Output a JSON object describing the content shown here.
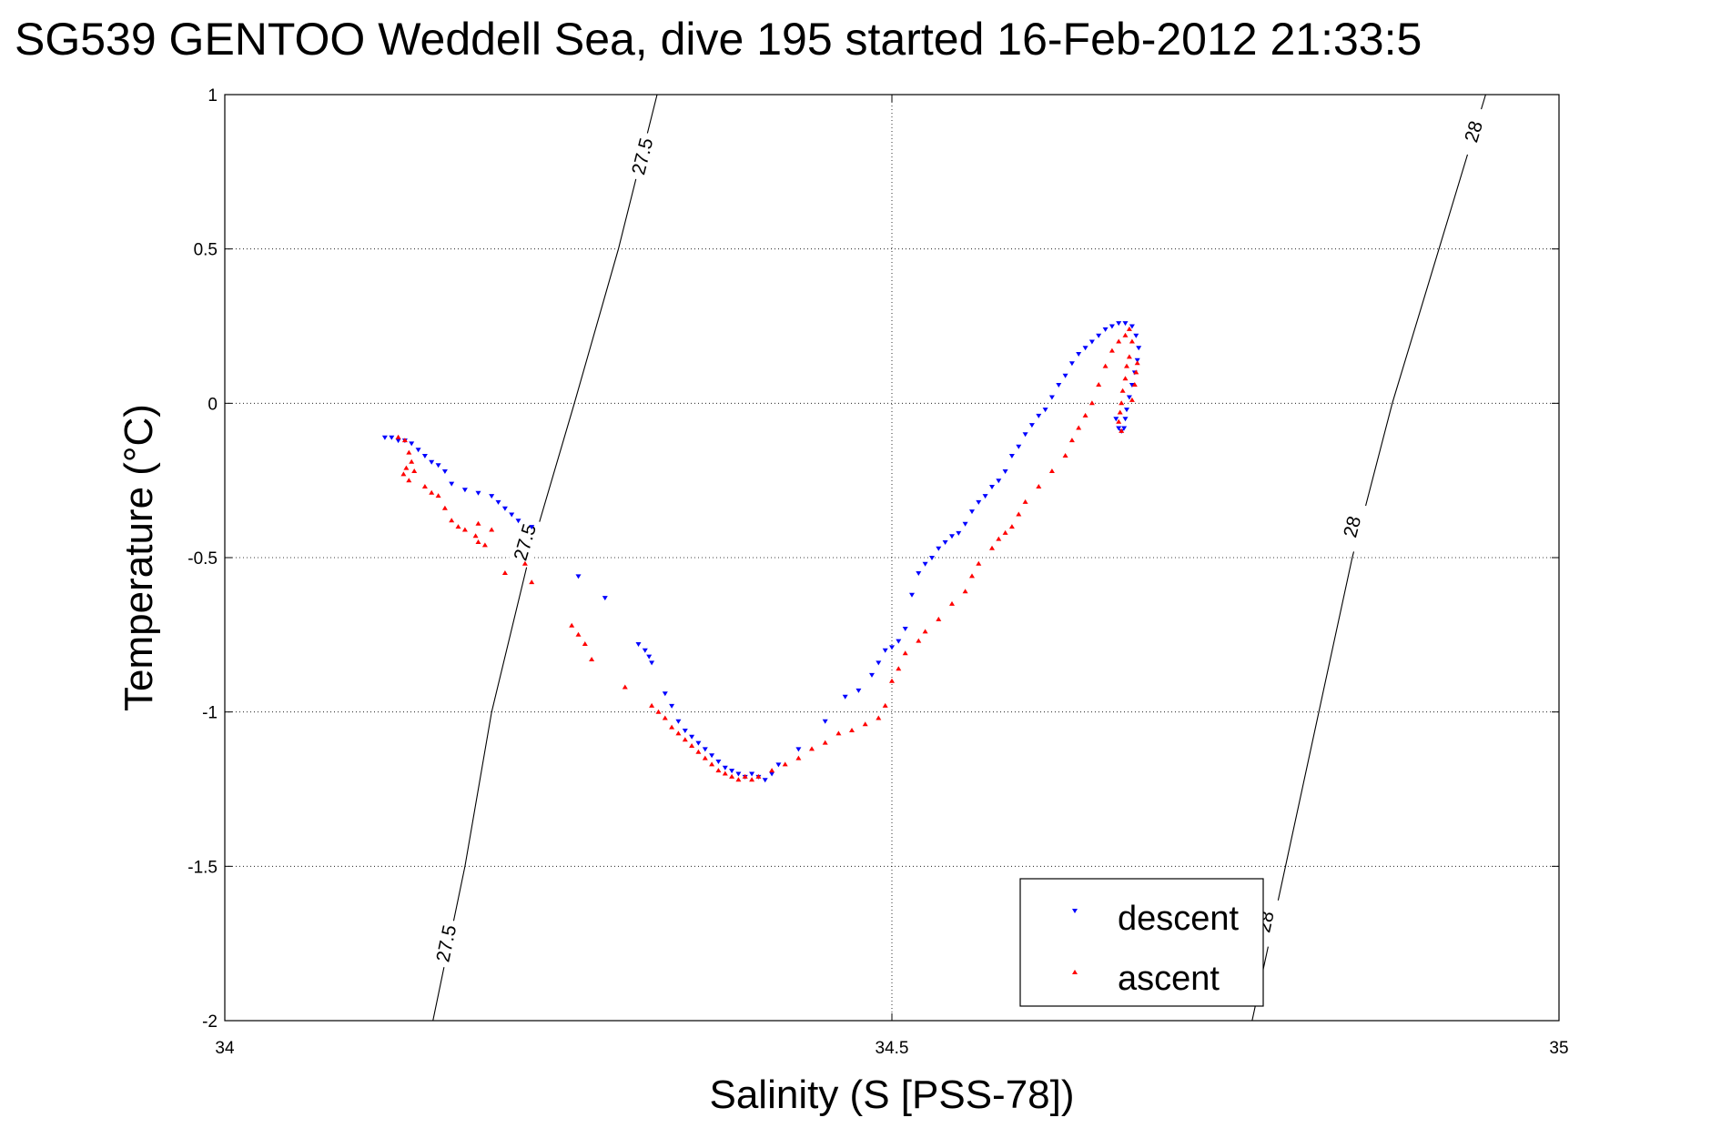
{
  "chart_data": {
    "type": "scatter",
    "title": "SG539 GENTOO Weddell Sea, dive 195 started 16-Feb-2012 21:33:5",
    "xlabel": "Salinity (S [PSS-78])",
    "ylabel": "Temperature (°C)",
    "xlim": [
      34,
      35
    ],
    "ylim": [
      -2,
      1
    ],
    "xticks": [
      34,
      34.5,
      35
    ],
    "xtick_labels": [
      "34",
      "34.5",
      "35"
    ],
    "yticks": [
      1,
      0.5,
      0,
      -0.5,
      -1,
      -1.5,
      -2
    ],
    "ytick_labels": [
      "1",
      "0.5",
      "0",
      "-0.5",
      "-1",
      "-1.5",
      "-2"
    ],
    "grid": true,
    "legend_position": "bottom-right",
    "series": [
      {
        "name": "descent",
        "color": "#0000ff",
        "marker": "triangle-down",
        "points": [
          [
            34.12,
            -0.11
          ],
          [
            34.125,
            -0.11
          ],
          [
            34.13,
            -0.12
          ],
          [
            34.135,
            -0.12
          ],
          [
            34.14,
            -0.13
          ],
          [
            34.145,
            -0.15
          ],
          [
            34.15,
            -0.17
          ],
          [
            34.155,
            -0.19
          ],
          [
            34.16,
            -0.2
          ],
          [
            34.165,
            -0.22
          ],
          [
            34.17,
            -0.26
          ],
          [
            34.18,
            -0.28
          ],
          [
            34.19,
            -0.29
          ],
          [
            34.2,
            -0.3
          ],
          [
            34.205,
            -0.32
          ],
          [
            34.21,
            -0.34
          ],
          [
            34.215,
            -0.36
          ],
          [
            34.22,
            -0.38
          ],
          [
            34.23,
            -0.4
          ],
          [
            34.265,
            -0.56
          ],
          [
            34.285,
            -0.63
          ],
          [
            34.31,
            -0.78
          ],
          [
            34.315,
            -0.8
          ],
          [
            34.318,
            -0.82
          ],
          [
            34.32,
            -0.84
          ],
          [
            34.33,
            -0.94
          ],
          [
            34.335,
            -0.98
          ],
          [
            34.34,
            -1.03
          ],
          [
            34.345,
            -1.06
          ],
          [
            34.35,
            -1.08
          ],
          [
            34.355,
            -1.1
          ],
          [
            34.36,
            -1.12
          ],
          [
            34.365,
            -1.14
          ],
          [
            34.37,
            -1.16
          ],
          [
            34.375,
            -1.18
          ],
          [
            34.38,
            -1.19
          ],
          [
            34.385,
            -1.2
          ],
          [
            34.39,
            -1.21
          ],
          [
            34.395,
            -1.2
          ],
          [
            34.4,
            -1.21
          ],
          [
            34.405,
            -1.22
          ],
          [
            34.41,
            -1.2
          ],
          [
            34.415,
            -1.17
          ],
          [
            34.43,
            -1.12
          ],
          [
            34.45,
            -1.03
          ],
          [
            34.465,
            -0.95
          ],
          [
            34.475,
            -0.93
          ],
          [
            34.485,
            -0.88
          ],
          [
            34.49,
            -0.84
          ],
          [
            34.495,
            -0.8
          ],
          [
            34.5,
            -0.79
          ],
          [
            34.505,
            -0.77
          ],
          [
            34.51,
            -0.73
          ],
          [
            34.515,
            -0.62
          ],
          [
            34.52,
            -0.55
          ],
          [
            34.525,
            -0.52
          ],
          [
            34.53,
            -0.5
          ],
          [
            34.535,
            -0.47
          ],
          [
            34.54,
            -0.45
          ],
          [
            34.545,
            -0.43
          ],
          [
            34.55,
            -0.42
          ],
          [
            34.555,
            -0.39
          ],
          [
            34.56,
            -0.35
          ],
          [
            34.565,
            -0.32
          ],
          [
            34.57,
            -0.3
          ],
          [
            34.575,
            -0.27
          ],
          [
            34.58,
            -0.25
          ],
          [
            34.585,
            -0.22
          ],
          [
            34.59,
            -0.17
          ],
          [
            34.595,
            -0.14
          ],
          [
            34.6,
            -0.1
          ],
          [
            34.605,
            -0.07
          ],
          [
            34.61,
            -0.04
          ],
          [
            34.615,
            -0.02
          ],
          [
            34.62,
            0.02
          ],
          [
            34.625,
            0.06
          ],
          [
            34.63,
            0.09
          ],
          [
            34.635,
            0.13
          ],
          [
            34.64,
            0.16
          ],
          [
            34.645,
            0.18
          ],
          [
            34.65,
            0.2
          ],
          [
            34.655,
            0.22
          ],
          [
            34.66,
            0.24
          ],
          [
            34.665,
            0.25
          ],
          [
            34.67,
            0.26
          ],
          [
            34.675,
            0.26
          ],
          [
            34.68,
            0.25
          ],
          [
            34.683,
            0.22
          ],
          [
            34.685,
            0.18
          ],
          [
            34.684,
            0.14
          ],
          [
            34.682,
            0.1
          ],
          [
            34.68,
            0.06
          ],
          [
            34.678,
            0.02
          ],
          [
            34.676,
            -0.02
          ],
          [
            34.675,
            -0.05
          ],
          [
            34.674,
            -0.08
          ],
          [
            34.672,
            -0.09
          ],
          [
            34.67,
            -0.08
          ],
          [
            34.668,
            -0.05
          ]
        ]
      },
      {
        "name": "ascent",
        "color": "#ff0000",
        "marker": "triangle-up",
        "points": [
          [
            34.13,
            -0.11
          ],
          [
            34.135,
            -0.12
          ],
          [
            34.138,
            -0.16
          ],
          [
            34.14,
            -0.19
          ],
          [
            34.136,
            -0.21
          ],
          [
            34.134,
            -0.23
          ],
          [
            34.138,
            -0.25
          ],
          [
            34.142,
            -0.22
          ],
          [
            34.15,
            -0.27
          ],
          [
            34.155,
            -0.29
          ],
          [
            34.16,
            -0.3
          ],
          [
            34.165,
            -0.34
          ],
          [
            34.17,
            -0.38
          ],
          [
            34.175,
            -0.4
          ],
          [
            34.18,
            -0.41
          ],
          [
            34.19,
            -0.39
          ],
          [
            34.2,
            -0.41
          ],
          [
            34.188,
            -0.43
          ],
          [
            34.19,
            -0.45
          ],
          [
            34.195,
            -0.46
          ],
          [
            34.21,
            -0.55
          ],
          [
            34.225,
            -0.52
          ],
          [
            34.23,
            -0.58
          ],
          [
            34.26,
            -0.72
          ],
          [
            34.265,
            -0.75
          ],
          [
            34.27,
            -0.78
          ],
          [
            34.275,
            -0.83
          ],
          [
            34.3,
            -0.92
          ],
          [
            34.32,
            -0.98
          ],
          [
            34.325,
            -1.0
          ],
          [
            34.33,
            -1.02
          ],
          [
            34.335,
            -1.05
          ],
          [
            34.34,
            -1.07
          ],
          [
            34.345,
            -1.09
          ],
          [
            34.35,
            -1.11
          ],
          [
            34.355,
            -1.13
          ],
          [
            34.36,
            -1.15
          ],
          [
            34.365,
            -1.17
          ],
          [
            34.37,
            -1.19
          ],
          [
            34.375,
            -1.2
          ],
          [
            34.38,
            -1.21
          ],
          [
            34.385,
            -1.22
          ],
          [
            34.39,
            -1.21
          ],
          [
            34.395,
            -1.22
          ],
          [
            34.4,
            -1.21
          ],
          [
            34.41,
            -1.19
          ],
          [
            34.42,
            -1.17
          ],
          [
            34.43,
            -1.15
          ],
          [
            34.44,
            -1.12
          ],
          [
            34.45,
            -1.1
          ],
          [
            34.46,
            -1.07
          ],
          [
            34.47,
            -1.06
          ],
          [
            34.48,
            -1.04
          ],
          [
            34.49,
            -1.02
          ],
          [
            34.495,
            -0.98
          ],
          [
            34.5,
            -0.9
          ],
          [
            34.505,
            -0.86
          ],
          [
            34.51,
            -0.81
          ],
          [
            34.52,
            -0.77
          ],
          [
            34.525,
            -0.74
          ],
          [
            34.535,
            -0.7
          ],
          [
            34.545,
            -0.65
          ],
          [
            34.555,
            -0.61
          ],
          [
            34.56,
            -0.56
          ],
          [
            34.565,
            -0.52
          ],
          [
            34.575,
            -0.47
          ],
          [
            34.58,
            -0.44
          ],
          [
            34.585,
            -0.42
          ],
          [
            34.59,
            -0.4
          ],
          [
            34.595,
            -0.36
          ],
          [
            34.6,
            -0.32
          ],
          [
            34.61,
            -0.27
          ],
          [
            34.62,
            -0.22
          ],
          [
            34.63,
            -0.17
          ],
          [
            34.635,
            -0.12
          ],
          [
            34.64,
            -0.08
          ],
          [
            34.645,
            -0.04
          ],
          [
            34.65,
            0.0
          ],
          [
            34.655,
            0.06
          ],
          [
            34.66,
            0.12
          ],
          [
            34.665,
            0.17
          ],
          [
            34.67,
            0.2
          ],
          [
            34.675,
            0.22
          ],
          [
            34.678,
            0.24
          ],
          [
            34.68,
            0.2
          ],
          [
            34.678,
            0.15
          ],
          [
            34.676,
            0.12
          ],
          [
            34.675,
            0.08
          ],
          [
            34.673,
            0.04
          ],
          [
            34.672,
            0.0
          ],
          [
            34.671,
            -0.03
          ],
          [
            34.67,
            -0.06
          ],
          [
            34.672,
            -0.09
          ],
          [
            34.68,
            0.01
          ],
          [
            34.682,
            0.06
          ],
          [
            34.683,
            0.1
          ],
          [
            34.684,
            0.13
          ]
        ]
      }
    ],
    "contours": [
      {
        "label": "27.5",
        "color": "#000000",
        "line": [
          [
            34.156,
            -2.0
          ],
          [
            34.18,
            -1.5
          ],
          [
            34.2,
            -1.0
          ],
          [
            34.228,
            -0.5
          ],
          [
            34.262,
            0.0
          ],
          [
            34.295,
            0.5
          ],
          [
            34.324,
            1.0
          ]
        ],
        "label_points": [
          [
            34.166,
            -1.75
          ],
          [
            34.225,
            -0.45
          ],
          [
            34.313,
            0.8
          ]
        ]
      },
      {
        "label": "28",
        "color": "#000000",
        "line": [
          [
            34.77,
            -2.0
          ],
          [
            34.795,
            -1.5
          ],
          [
            34.82,
            -1.0
          ],
          [
            34.845,
            -0.5
          ],
          [
            34.875,
            0.0
          ],
          [
            34.91,
            0.5
          ],
          [
            34.945,
            1.0
          ]
        ],
        "label_points": [
          [
            34.78,
            -1.68
          ],
          [
            34.845,
            -0.4
          ],
          [
            34.936,
            0.88
          ]
        ]
      }
    ]
  }
}
